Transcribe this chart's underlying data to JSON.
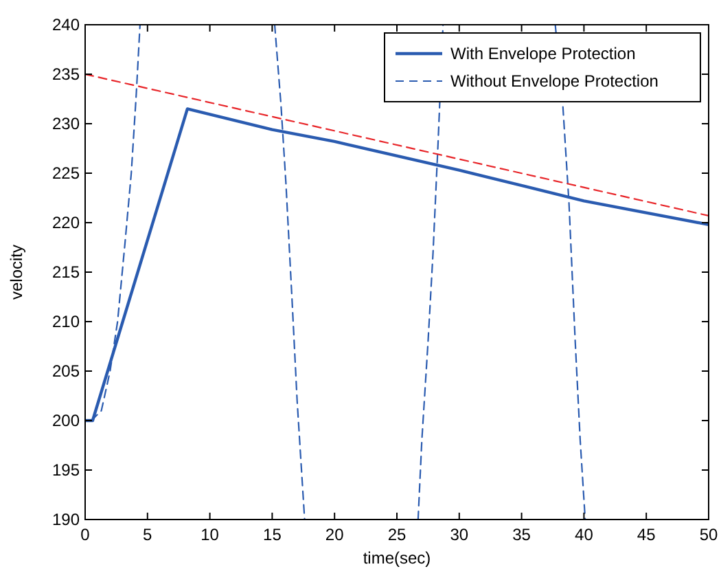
{
  "chart_data": {
    "type": "line",
    "xlabel": "time(sec)",
    "ylabel": "velocity",
    "xlim": [
      0,
      50
    ],
    "ylim": [
      190,
      240
    ],
    "xticks": [
      0,
      5,
      10,
      15,
      20,
      25,
      30,
      35,
      40,
      45,
      50
    ],
    "yticks": [
      190,
      195,
      200,
      205,
      210,
      215,
      220,
      225,
      230,
      235,
      240
    ],
    "grid": false,
    "legend": "top right",
    "series": [
      {
        "name": "With Envelope Protection",
        "color": "#2a5bb0",
        "line_style": "solid",
        "x": [
          0,
          0.6,
          8.2,
          15,
          20,
          30,
          40,
          50
        ],
        "values": [
          200,
          200,
          231.5,
          229.4,
          228.2,
          225.3,
          222.2,
          219.8
        ]
      },
      {
        "name": "Without Envelope Protection",
        "color": "#2a5bb0",
        "line_style": "dashed",
        "x": [
          0.5,
          1.3,
          2,
          2.6,
          3.2,
          3.7,
          4.1,
          4.4,
          10,
          15.2,
          15.7,
          16.1,
          16.6,
          17,
          17.4,
          17.6,
          22,
          26.7,
          27,
          27.5,
          27.9,
          28.3,
          28.7,
          33,
          37.7,
          38.3,
          38.8,
          39.3,
          39.7,
          40.1
        ],
        "values": [
          200,
          201,
          205,
          210,
          218,
          225,
          233,
          240,
          null,
          240,
          232,
          224,
          212,
          202,
          194,
          190,
          null,
          190,
          198,
          208,
          217,
          228,
          240,
          null,
          240,
          232,
          222,
          208,
          198,
          190
        ]
      },
      {
        "color": "#e8262a",
        "line_style": "dashed",
        "x": [
          0,
          50
        ],
        "values": [
          235,
          220.7
        ]
      }
    ]
  }
}
